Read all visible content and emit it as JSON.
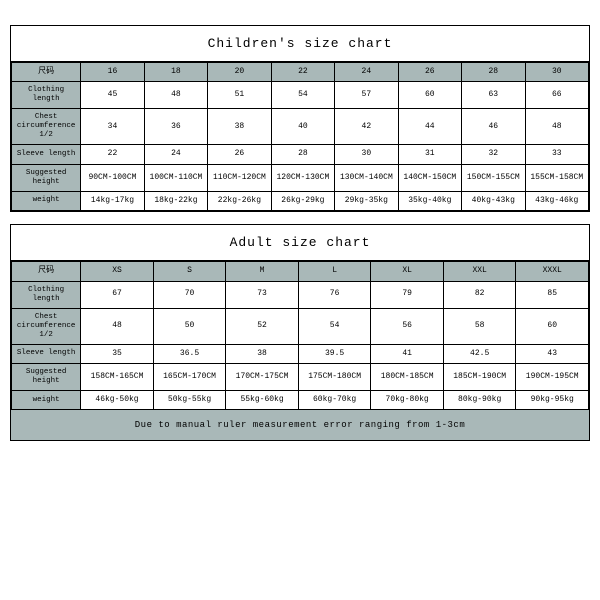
{
  "children": {
    "title": "Children's size chart",
    "columns": [
      "尺码",
      "16",
      "18",
      "20",
      "22",
      "24",
      "26",
      "28",
      "30"
    ],
    "rows": [
      {
        "label": "Clothing length",
        "cells": [
          "45",
          "48",
          "51",
          "54",
          "57",
          "60",
          "63",
          "66"
        ]
      },
      {
        "label": "Chest circumference 1/2",
        "cells": [
          "34",
          "36",
          "38",
          "40",
          "42",
          "44",
          "46",
          "48"
        ]
      },
      {
        "label": "Sleeve length",
        "cells": [
          "22",
          "24",
          "26",
          "28",
          "30",
          "31",
          "32",
          "33"
        ]
      },
      {
        "label": "Suggested height",
        "cells": [
          "90CM-100CM",
          "100CM-110CM",
          "110CM-120CM",
          "120CM-130CM",
          "130CM-140CM",
          "140CM-150CM",
          "150CM-155CM",
          "155CM-158CM"
        ]
      },
      {
        "label": "weight",
        "cells": [
          "14kg-17kg",
          "18kg-22kg",
          "22kg-26kg",
          "26kg-29kg",
          "29kg-35kg",
          "35kg-40kg",
          "40kg-43kg",
          "43kg-46kg"
        ]
      }
    ]
  },
  "adult": {
    "title": "Adult size chart",
    "columns": [
      "尺码",
      "XS",
      "S",
      "M",
      "L",
      "XL",
      "XXL",
      "XXXL"
    ],
    "rows": [
      {
        "label": "Clothing length",
        "cells": [
          "67",
          "70",
          "73",
          "76",
          "79",
          "82",
          "85"
        ]
      },
      {
        "label": "Chest circumference 1/2",
        "cells": [
          "48",
          "50",
          "52",
          "54",
          "56",
          "58",
          "60"
        ]
      },
      {
        "label": "Sleeve length",
        "cells": [
          "35",
          "36.5",
          "38",
          "39.5",
          "41",
          "42.5",
          "43"
        ]
      },
      {
        "label": "Suggested height",
        "cells": [
          "158CM-165CM",
          "165CM-170CM",
          "170CM-175CM",
          "175CM-180CM",
          "180CM-185CM",
          "185CM-190CM",
          "190CM-195CM"
        ]
      },
      {
        "label": "weight",
        "cells": [
          "46kg-50kg",
          "50kg-55kg",
          "55kg-60kg",
          "60kg-70kg",
          "70kg-80kg",
          "80kg-90kg",
          "90kg-95kg"
        ]
      }
    ],
    "footer": "Due to manual ruler measurement error ranging from 1-3cm"
  },
  "styling": {
    "header_bg": "#a9b8b8",
    "border_color": "#000000",
    "font": "Courier New",
    "body_bg": "#ffffff"
  }
}
